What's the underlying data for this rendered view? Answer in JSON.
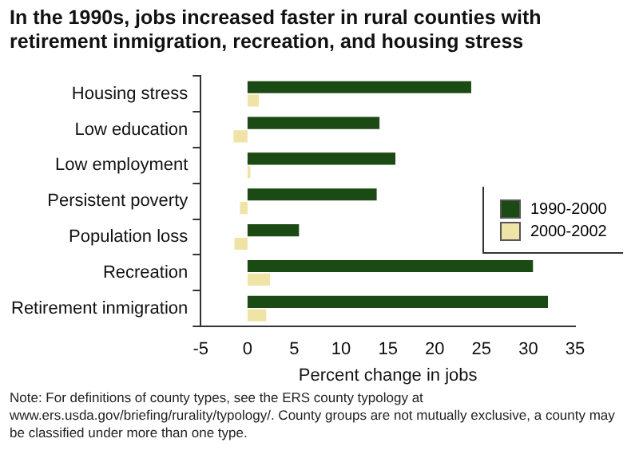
{
  "chart_data": {
    "type": "bar",
    "orientation": "horizontal",
    "title": "In the 1990s, jobs increased faster in rural counties with retirement inmigration, recreation, and housing stress",
    "categories": [
      "Housing stress",
      "Low education",
      "Low employment",
      "Persistent poverty",
      "Population loss",
      "Recreation",
      "Retirement inmigration"
    ],
    "series": [
      {
        "name": "1990-2000",
        "color": "#1c4a14",
        "values": [
          23.9,
          14.1,
          15.8,
          13.8,
          5.5,
          30.5,
          32.1
        ]
      },
      {
        "name": "2000-2002",
        "color": "#efe3a6",
        "values": [
          1.2,
          -1.5,
          0.3,
          -0.8,
          -1.4,
          2.4,
          2.0
        ]
      }
    ],
    "xlabel": "Percent change in jobs",
    "xlim": [
      -5,
      35
    ],
    "xticks": [
      -5,
      0,
      5,
      10,
      15,
      20,
      25,
      30,
      35
    ],
    "grid": false,
    "legend": "right",
    "annotations": [
      "Note: For definitions of county types, see the ERS county typology at www.ers.usda.gov/briefing/rurality/typology/. County groups are not mutually exclusive, a county may be classified under more than one type."
    ]
  }
}
